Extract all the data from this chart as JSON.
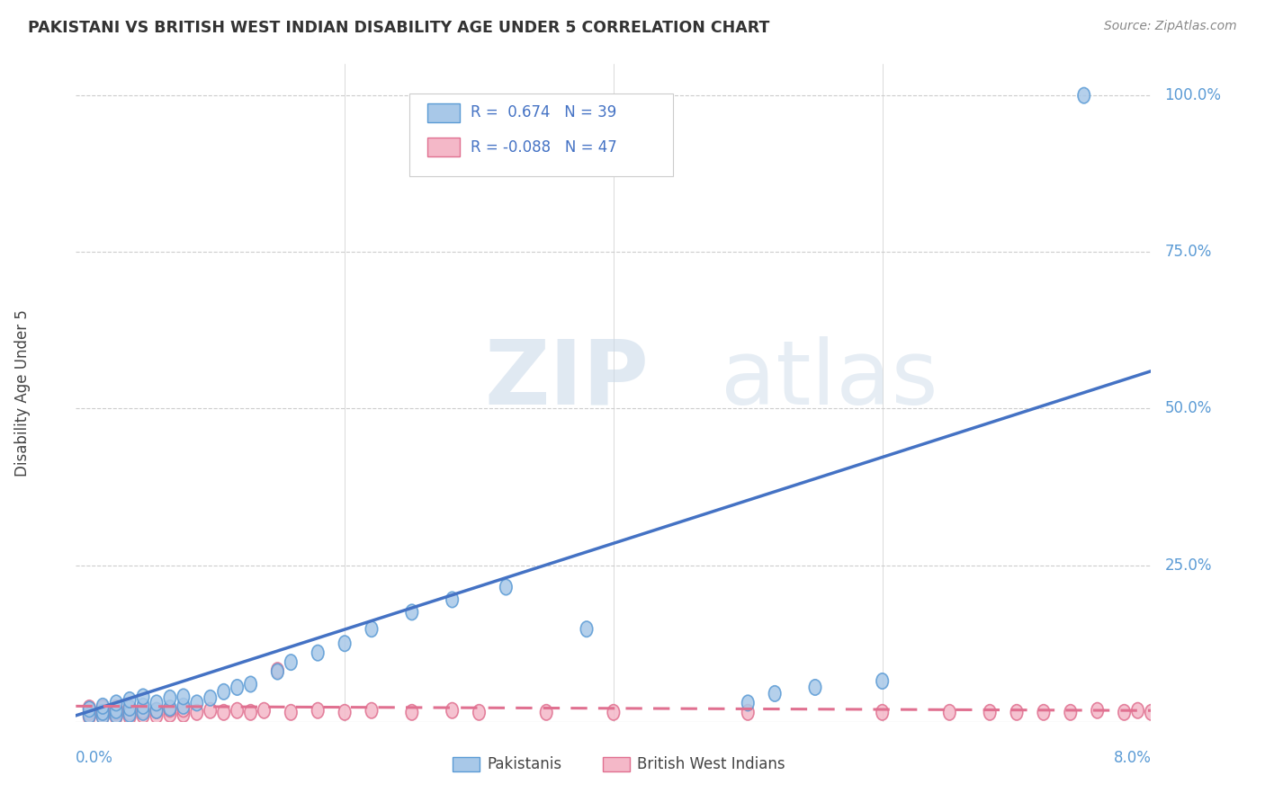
{
  "title": "PAKISTANI VS BRITISH WEST INDIAN DISABILITY AGE UNDER 5 CORRELATION CHART",
  "source": "Source: ZipAtlas.com",
  "ylabel": "Disability Age Under 5",
  "xmin": 0.0,
  "xmax": 0.08,
  "ymin": 0.0,
  "ymax": 1.05,
  "yticks": [
    0.0,
    0.25,
    0.5,
    0.75,
    1.0
  ],
  "ytick_labels": [
    "",
    "25.0%",
    "50.0%",
    "75.0%",
    "100.0%"
  ],
  "background_color": "#ffffff",
  "pakistani_color": "#a8c8e8",
  "pakistani_edge_color": "#5b9bd5",
  "bwi_color": "#f4b8c8",
  "bwi_edge_color": "#e07090",
  "pakistani_line_color": "#4472c4",
  "bwi_line_color": "#e07090",
  "legend_R1": "R =  0.674",
  "legend_N1": "N = 39",
  "legend_R2": "R = -0.088",
  "legend_N2": "N = 47",
  "legend_label1": "Pakistanis",
  "legend_label2": "British West Indians",
  "pak_line_x0": 0.0,
  "pak_line_y0": 0.01,
  "pak_line_x1": 0.08,
  "pak_line_y1": 0.56,
  "bwi_line_x0": 0.0,
  "bwi_line_y0": 0.025,
  "bwi_line_x1": 0.08,
  "bwi_line_y1": 0.018,
  "pakistani_x": [
    0.001,
    0.001,
    0.002,
    0.002,
    0.002,
    0.003,
    0.003,
    0.003,
    0.004,
    0.004,
    0.004,
    0.005,
    0.005,
    0.005,
    0.006,
    0.006,
    0.007,
    0.007,
    0.008,
    0.008,
    0.009,
    0.01,
    0.011,
    0.012,
    0.013,
    0.015,
    0.016,
    0.018,
    0.02,
    0.022,
    0.025,
    0.028,
    0.032,
    0.038,
    0.05,
    0.052,
    0.055,
    0.06,
    0.075
  ],
  "pakistani_y": [
    0.01,
    0.02,
    0.008,
    0.015,
    0.025,
    0.01,
    0.018,
    0.03,
    0.012,
    0.022,
    0.035,
    0.015,
    0.025,
    0.04,
    0.018,
    0.03,
    0.022,
    0.038,
    0.025,
    0.04,
    0.03,
    0.038,
    0.048,
    0.055,
    0.06,
    0.08,
    0.095,
    0.11,
    0.125,
    0.148,
    0.175,
    0.195,
    0.215,
    0.148,
    0.03,
    0.045,
    0.055,
    0.065,
    1.0
  ],
  "bwi_x": [
    0.001,
    0.001,
    0.001,
    0.002,
    0.002,
    0.002,
    0.003,
    0.003,
    0.003,
    0.004,
    0.004,
    0.004,
    0.005,
    0.005,
    0.006,
    0.006,
    0.007,
    0.007,
    0.008,
    0.008,
    0.009,
    0.01,
    0.011,
    0.012,
    0.013,
    0.014,
    0.015,
    0.016,
    0.018,
    0.02,
    0.022,
    0.025,
    0.028,
    0.03,
    0.035,
    0.04,
    0.05,
    0.06,
    0.065,
    0.068,
    0.07,
    0.072,
    0.074,
    0.076,
    0.078,
    0.079,
    0.08
  ],
  "bwi_y": [
    0.008,
    0.015,
    0.022,
    0.008,
    0.015,
    0.022,
    0.008,
    0.015,
    0.022,
    0.008,
    0.015,
    0.022,
    0.01,
    0.018,
    0.01,
    0.018,
    0.012,
    0.02,
    0.012,
    0.02,
    0.015,
    0.018,
    0.015,
    0.018,
    0.015,
    0.018,
    0.082,
    0.015,
    0.018,
    0.015,
    0.018,
    0.015,
    0.018,
    0.015,
    0.015,
    0.015,
    0.015,
    0.015,
    0.015,
    0.015,
    0.015,
    0.015,
    0.015,
    0.018,
    0.015,
    0.018,
    0.015
  ]
}
